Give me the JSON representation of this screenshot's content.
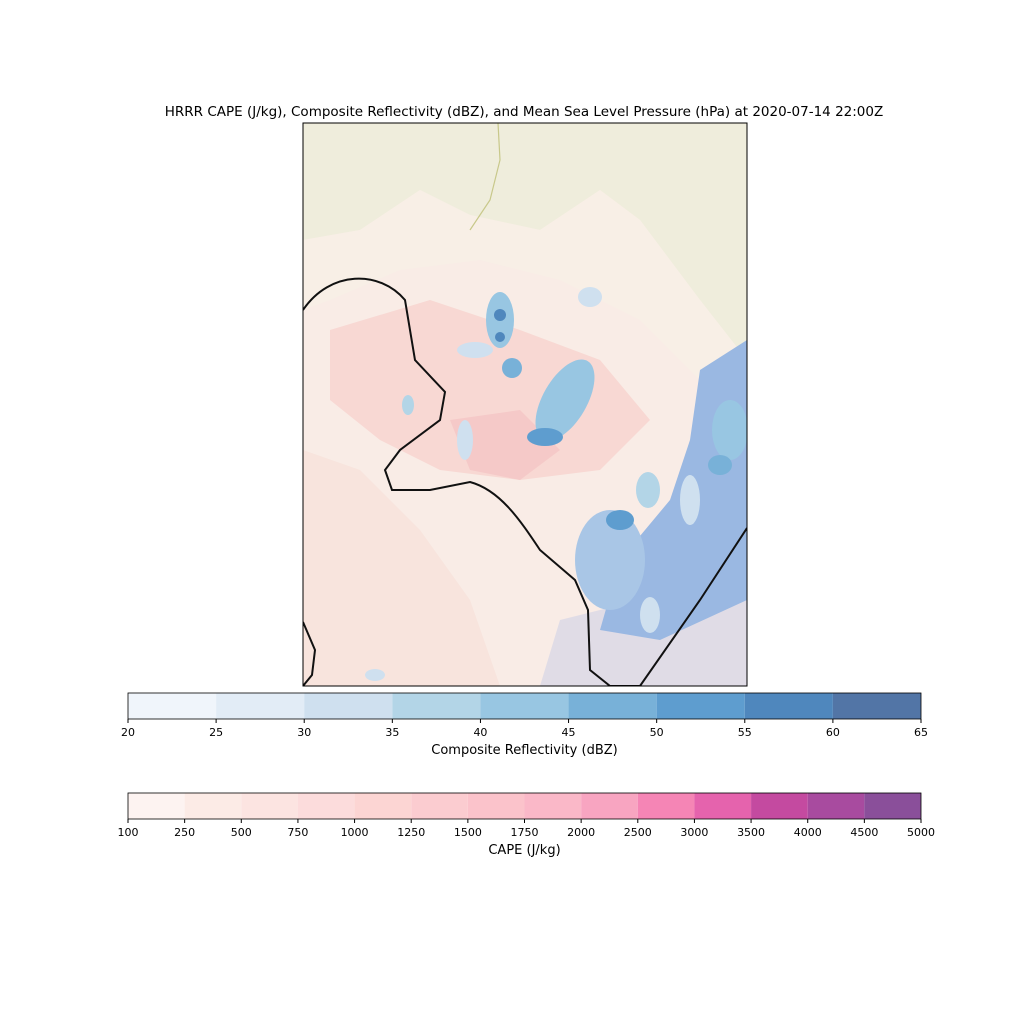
{
  "title": "HRRR CAPE (J/kg), Composite Reflectivity (dBZ), and Mean Sea Level Pressure (hPa) at 2020-07-14 22:00Z",
  "colorbars": [
    {
      "label": "Composite Reflectivity (dBZ)",
      "ticks": [
        20,
        25,
        30,
        35,
        40,
        45,
        50,
        55,
        60,
        65
      ],
      "colors": [
        "#f0f5fb",
        "#e2ecf6",
        "#cfe0ef",
        "#b3d5e7",
        "#98c6e2",
        "#78b1d8",
        "#5e9dcf",
        "#4f87bd",
        "#5275a6"
      ]
    },
    {
      "label": "CAPE (J/kg)",
      "ticks": [
        100,
        250,
        500,
        750,
        1000,
        1250,
        1500,
        1750,
        2000,
        2500,
        3000,
        3500,
        4000,
        4500,
        5000
      ],
      "colors": [
        "#fdf3f1",
        "#fcebe6",
        "#fce4e1",
        "#fcdcdc",
        "#fcd5d3",
        "#fbccd0",
        "#fbc3cb",
        "#fab8c8",
        "#f8a5c1",
        "#f585b5",
        "#e563ad",
        "#c44aa0",
        "#a84b9f",
        "#8a4f9a"
      ]
    }
  ]
}
